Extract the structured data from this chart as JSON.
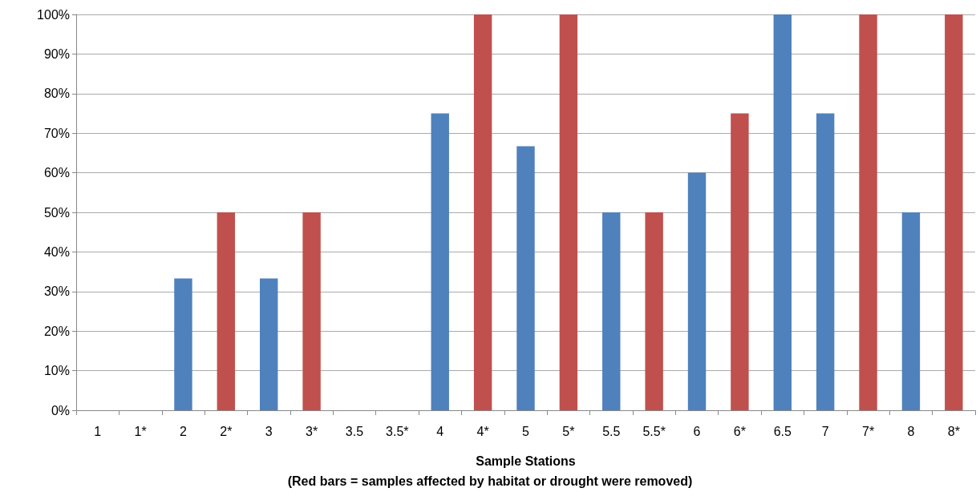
{
  "chart_data": {
    "type": "bar",
    "xlabel": "Sample Stations",
    "annotations": [
      "(Red bars = samples affected by habitat or drought were removed)"
    ],
    "categories": [
      "1",
      "1*",
      "2",
      "2*",
      "3",
      "3*",
      "3.5",
      "3.5*",
      "4",
      "4*",
      "5",
      "5*",
      "5.5",
      "5.5*",
      "6",
      "6*",
      "6.5",
      "7",
      "7*",
      "8",
      "8*"
    ],
    "values": [
      0,
      0,
      33.3,
      50,
      33.3,
      50,
      0,
      0,
      75,
      100,
      66.7,
      100,
      50,
      50,
      60,
      75,
      100,
      75,
      100,
      50,
      100
    ],
    "colors": [
      "#4f81bd",
      "#c0504d",
      "#4f81bd",
      "#c0504d",
      "#4f81bd",
      "#c0504d",
      "#4f81bd",
      "#c0504d",
      "#4f81bd",
      "#c0504d",
      "#4f81bd",
      "#c0504d",
      "#4f81bd",
      "#c0504d",
      "#4f81bd",
      "#c0504d",
      "#4f81bd",
      "#4f81bd",
      "#c0504d",
      "#4f81bd",
      "#c0504d"
    ],
    "ylim": [
      0,
      100
    ],
    "yticks": [
      {
        "value": 0,
        "label": "0%"
      },
      {
        "value": 10,
        "label": "10%"
      },
      {
        "value": 20,
        "label": "20%"
      },
      {
        "value": 30,
        "label": "30%"
      },
      {
        "value": 40,
        "label": "40%"
      },
      {
        "value": 50,
        "label": "50%"
      },
      {
        "value": 60,
        "label": "60%"
      },
      {
        "value": 70,
        "label": "70%"
      },
      {
        "value": 80,
        "label": "80%"
      },
      {
        "value": 90,
        "label": "90%"
      },
      {
        "value": 100,
        "label": "100%"
      }
    ],
    "grid": "y"
  }
}
